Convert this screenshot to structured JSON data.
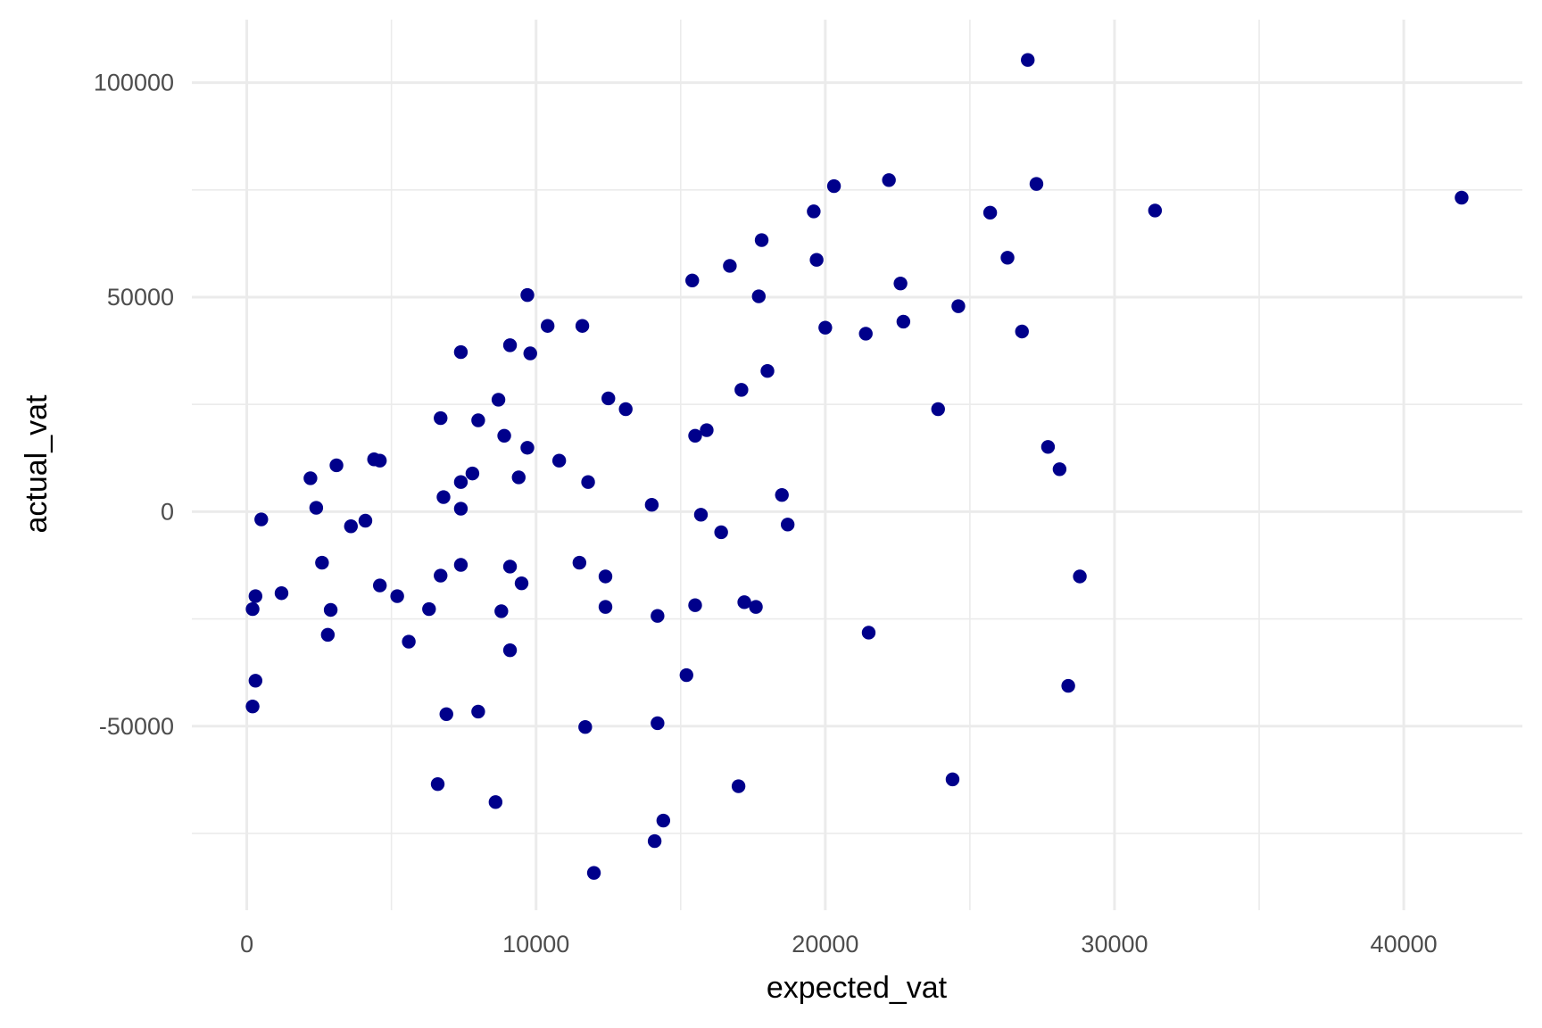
{
  "chart_data": {
    "type": "scatter",
    "xlabel": "expected_vat",
    "ylabel": "actual_vat",
    "xlim": [
      -1900,
      44100
    ],
    "ylim": [
      -92900,
      114700
    ],
    "x_ticks": [
      0,
      10000,
      20000,
      30000,
      40000
    ],
    "x_tick_labels": [
      "0",
      "10000",
      "20000",
      "30000",
      "40000"
    ],
    "x_minor": [
      5000,
      15000,
      25000,
      35000
    ],
    "y_ticks": [
      -50000,
      0,
      50000,
      100000
    ],
    "y_tick_labels": [
      "-50000",
      "0",
      "50000",
      "100000"
    ],
    "y_minor": [
      -75000,
      -25000,
      25000,
      75000
    ],
    "grid": true,
    "point_color": "#00008B",
    "grid_color": "#EBEBEB",
    "points": [
      [
        27000,
        105300
      ],
      [
        22200,
        77300
      ],
      [
        20300,
        75900
      ],
      [
        27300,
        76400
      ],
      [
        42000,
        73200
      ],
      [
        31400,
        70200
      ],
      [
        19600,
        70000
      ],
      [
        25700,
        69700
      ],
      [
        19700,
        58700
      ],
      [
        26300,
        59200
      ],
      [
        17800,
        63300
      ],
      [
        16700,
        57300
      ],
      [
        15400,
        53900
      ],
      [
        22600,
        53200
      ],
      [
        9700,
        50500
      ],
      [
        17700,
        50200
      ],
      [
        24600,
        47900
      ],
      [
        22700,
        44300
      ],
      [
        10400,
        43300
      ],
      [
        11600,
        43300
      ],
      [
        20000,
        42900
      ],
      [
        21400,
        41500
      ],
      [
        26800,
        42000
      ],
      [
        9100,
        38800
      ],
      [
        7400,
        37200
      ],
      [
        9800,
        36900
      ],
      [
        18000,
        32800
      ],
      [
        17100,
        28400
      ],
      [
        8700,
        26100
      ],
      [
        12500,
        26400
      ],
      [
        13100,
        23900
      ],
      [
        23900,
        23900
      ],
      [
        6700,
        21800
      ],
      [
        8000,
        21300
      ],
      [
        15900,
        19000
      ],
      [
        15500,
        17700
      ],
      [
        8900,
        17700
      ],
      [
        9700,
        14900
      ],
      [
        27700,
        15100
      ],
      [
        4400,
        12200
      ],
      [
        4600,
        11900
      ],
      [
        10800,
        11900
      ],
      [
        3100,
        10800
      ],
      [
        28100,
        9900
      ],
      [
        2200,
        7800
      ],
      [
        7800,
        8900
      ],
      [
        9400,
        8000
      ],
      [
        7400,
        6900
      ],
      [
        11800,
        6900
      ],
      [
        18500,
        3900
      ],
      [
        6800,
        3400
      ],
      [
        14000,
        1600
      ],
      [
        2400,
        900
      ],
      [
        7400,
        700
      ],
      [
        15700,
        -700
      ],
      [
        500,
        -1800
      ],
      [
        4100,
        -2100
      ],
      [
        3600,
        -3400
      ],
      [
        18700,
        -3000
      ],
      [
        16400,
        -4800
      ],
      [
        2600,
        -11900
      ],
      [
        7400,
        -12400
      ],
      [
        11500,
        -11900
      ],
      [
        9100,
        -12800
      ],
      [
        6700,
        -14900
      ],
      [
        12400,
        -15100
      ],
      [
        28800,
        -15100
      ],
      [
        9500,
        -16700
      ],
      [
        4600,
        -17200
      ],
      [
        1200,
        -19000
      ],
      [
        300,
        -19700
      ],
      [
        5200,
        -19700
      ],
      [
        17200,
        -21100
      ],
      [
        15500,
        -21800
      ],
      [
        17600,
        -22200
      ],
      [
        12400,
        -22200
      ],
      [
        200,
        -22700
      ],
      [
        6300,
        -22700
      ],
      [
        2900,
        -22900
      ],
      [
        8800,
        -23200
      ],
      [
        14200,
        -24300
      ],
      [
        2800,
        -28700
      ],
      [
        21500,
        -28200
      ],
      [
        5600,
        -30300
      ],
      [
        9100,
        -32300
      ],
      [
        15200,
        -38100
      ],
      [
        300,
        -39400
      ],
      [
        28400,
        -40600
      ],
      [
        200,
        -45400
      ],
      [
        8000,
        -46600
      ],
      [
        6900,
        -47200
      ],
      [
        14200,
        -49300
      ],
      [
        11700,
        -50200
      ],
      [
        24400,
        -62400
      ],
      [
        6600,
        -63500
      ],
      [
        17000,
        -64000
      ],
      [
        8600,
        -67700
      ],
      [
        14400,
        -72000
      ],
      [
        14100,
        -76800
      ],
      [
        12000,
        -84200
      ]
    ]
  }
}
